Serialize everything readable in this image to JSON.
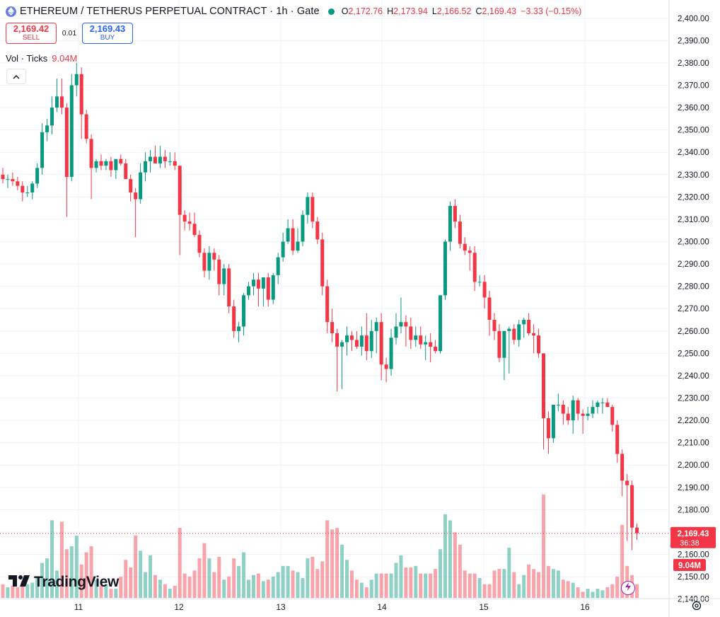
{
  "header": {
    "title": "ETHEREUM / TETHERUS PERPETUAL CONTRACT · 1h · Gate",
    "ohlc": {
      "o_label": "O",
      "o": "2,172.76",
      "h_label": "H",
      "h": "2,173.94",
      "l_label": "L",
      "l": "2,166.52",
      "c_label": "C",
      "c": "2,169.43",
      "change": "−3.33 (−0.15%)"
    }
  },
  "trade": {
    "sell_price": "2,169.42",
    "sell_label": "SELL",
    "spread": "0.01",
    "buy_price": "2,169.43",
    "buy_label": "BUY"
  },
  "volume_legend": {
    "label": "Vol · Ticks",
    "value": "9.04M"
  },
  "price_tag": {
    "price": "2,169.43",
    "countdown": "36:38"
  },
  "volume_tag": "9.04M",
  "branding": {
    "logo_text": "TradingView"
  },
  "icons": {
    "symbol": "ethereum-icon",
    "collapse": "chevron-up-icon",
    "bolt": "lightning-icon",
    "settings": "gear-icon"
  },
  "colors": {
    "up": "#089981",
    "down": "#f23645",
    "grid": "#f0f3fa",
    "axis_text": "#131722"
  },
  "chart_data": {
    "type": "candlestick",
    "interval": "1h",
    "y_axis": {
      "ticks": [
        "2,140.00",
        "2,150.00",
        "2,160.00",
        "2,170.00",
        "2,180.00",
        "2,190.00",
        "2,200.00",
        "2,210.00",
        "2,220.00",
        "2,230.00",
        "2,240.00",
        "2,250.00",
        "2,260.00",
        "2,270.00",
        "2,280.00",
        "2,290.00",
        "2,300.00",
        "2,310.00",
        "2,320.00",
        "2,330.00",
        "2,340.00",
        "2,350.00",
        "2,360.00",
        "2,370.00",
        "2,380.00",
        "2,390.00",
        "2,400.00"
      ],
      "range": [
        2138,
        2405
      ]
    },
    "x_axis": {
      "labels": [
        "11",
        "12",
        "13",
        "14",
        "15",
        "16"
      ]
    },
    "grid": true,
    "last_price": 2169.43,
    "candles": {
      "o": [
        2330,
        2328,
        2328,
        2327,
        2325,
        2322,
        2322,
        2326,
        2333,
        2349,
        2352,
        2360,
        2365,
        2360,
        2329,
        2370,
        2375,
        2357,
        2346,
        2333,
        2336,
        2334,
        2336,
        2332,
        2337,
        2335,
        2328,
        2322,
        2319,
        2331,
        2336,
        2338,
        2335,
        2338,
        2336,
        2336,
        2334,
        2312,
        2309,
        2308,
        2303,
        2295,
        2287,
        2295,
        2292,
        2281,
        2288,
        2271,
        2260,
        2262,
        2276,
        2280,
        2283,
        2279,
        2284,
        2274,
        2285,
        2293,
        2300,
        2306,
        2296,
        2300,
        2312,
        2320,
        2309,
        2301,
        2280,
        2264,
        2259,
        2253,
        2255,
        2258,
        2256,
        2253,
        2258,
        2251,
        2260,
        2264,
        2245,
        2243,
        2257,
        2262,
        2264,
        2262,
        2256,
        2258,
        2254,
        2255,
        2253,
        2251,
        2276,
        2300,
        2316,
        2309,
        2299,
        2296,
        2295,
        2282,
        2282,
        2275,
        2265,
        2260,
        2248,
        2260,
        2261,
        2256,
        2263,
        2265,
        2259,
        2258,
        2250,
        2221,
        2212,
        2227,
        2227,
        2223,
        2220,
        2229,
        2223,
        2222,
        2223,
        2226,
        2228,
        2228,
        2226,
        2218,
        2205,
        2193,
        2191,
        2172
      ],
      "h": [
        2333,
        2330,
        2331,
        2329,
        2327,
        2325,
        2327,
        2335,
        2353,
        2355,
        2365,
        2373,
        2373,
        2362,
        2375,
        2380,
        2378,
        2359,
        2348,
        2337,
        2339,
        2337,
        2338,
        2335,
        2339,
        2337,
        2330,
        2324,
        2335,
        2340,
        2341,
        2343,
        2343,
        2341,
        2340,
        2340,
        2334,
        2314,
        2313,
        2313,
        2305,
        2297,
        2298,
        2297,
        2294,
        2290,
        2290,
        2274,
        2264,
        2277,
        2282,
        2286,
        2286,
        2283,
        2286,
        2286,
        2295,
        2304,
        2310,
        2310,
        2306,
        2314,
        2322,
        2322,
        2311,
        2304,
        2283,
        2270,
        2261,
        2256,
        2262,
        2260,
        2260,
        2262,
        2268,
        2265,
        2266,
        2268,
        2248,
        2261,
        2268,
        2275,
        2267,
        2266,
        2262,
        2262,
        2258,
        2259,
        2256,
        2276,
        2301,
        2318,
        2319,
        2312,
        2302,
        2298,
        2298,
        2285,
        2285,
        2278,
        2268,
        2263,
        2260,
        2262,
        2263,
        2265,
        2266,
        2268,
        2263,
        2261,
        2250,
        2224,
        2226,
        2232,
        2229,
        2226,
        2231,
        2230,
        2225,
        2226,
        2229,
        2229,
        2230,
        2230,
        2227,
        2220,
        2207,
        2196,
        2193,
        2173.94
      ],
      "l": [
        2326,
        2324,
        2325,
        2323,
        2318,
        2320,
        2319,
        2324,
        2330,
        2345,
        2348,
        2358,
        2357,
        2311,
        2327,
        2365,
        2346,
        2344,
        2319,
        2331,
        2332,
        2332,
        2329,
        2328,
        2334,
        2333,
        2318,
        2302,
        2317,
        2327,
        2331,
        2335,
        2333,
        2333,
        2334,
        2332,
        2294,
        2305,
        2305,
        2302,
        2293,
        2284,
        2283,
        2287,
        2276,
        2276,
        2268,
        2257,
        2255,
        2258,
        2274,
        2276,
        2271,
        2271,
        2271,
        2272,
        2281,
        2291,
        2299,
        2294,
        2295,
        2298,
        2308,
        2306,
        2299,
        2276,
        2259,
        2255,
        2233,
        2234,
        2249,
        2251,
        2252,
        2249,
        2247,
        2248,
        2250,
        2238,
        2237,
        2240,
        2254,
        2259,
        2253,
        2252,
        2253,
        2252,
        2247,
        2246,
        2250,
        2250,
        2274,
        2296,
        2306,
        2297,
        2294,
        2287,
        2278,
        2280,
        2270,
        2258,
        2256,
        2246,
        2238,
        2241,
        2254,
        2253,
        2257,
        2258,
        2250,
        2248,
        2207,
        2205,
        2210,
        2224,
        2218,
        2218,
        2214,
        2220,
        2214,
        2220,
        2221,
        2223,
        2223,
        2226,
        2215,
        2201,
        2186,
        2166,
        2162,
        2166.52
      ],
      "c": [
        2328,
        2328,
        2327,
        2325,
        2322,
        2322,
        2326,
        2333,
        2349,
        2352,
        2360,
        2365,
        2360,
        2329,
        2370,
        2375,
        2357,
        2346,
        2333,
        2336,
        2334,
        2336,
        2332,
        2337,
        2335,
        2328,
        2322,
        2319,
        2331,
        2336,
        2338,
        2335,
        2338,
        2336,
        2336,
        2334,
        2312,
        2309,
        2308,
        2303,
        2295,
        2287,
        2295,
        2292,
        2281,
        2288,
        2271,
        2260,
        2262,
        2276,
        2280,
        2283,
        2279,
        2284,
        2274,
        2285,
        2293,
        2300,
        2306,
        2296,
        2300,
        2312,
        2320,
        2309,
        2301,
        2280,
        2264,
        2259,
        2253,
        2255,
        2258,
        2256,
        2253,
        2258,
        2251,
        2260,
        2264,
        2245,
        2243,
        2257,
        2262,
        2264,
        2262,
        2256,
        2258,
        2254,
        2255,
        2253,
        2251,
        2276,
        2300,
        2316,
        2309,
        2299,
        2296,
        2295,
        2282,
        2282,
        2275,
        2265,
        2260,
        2248,
        2260,
        2261,
        2256,
        2263,
        2265,
        2259,
        2258,
        2250,
        2221,
        2212,
        2227,
        2227,
        2223,
        2220,
        2229,
        2223,
        2222,
        2223,
        2226,
        2228,
        2228,
        2226,
        2218,
        2205,
        2193,
        2191,
        2172,
        2169.43
      ]
    },
    "volume": [
      0.9,
      0.7,
      0.8,
      0.7,
      1.1,
      0.9,
      1.0,
      1.4,
      2.3,
      2.6,
      5.1,
      1.8,
      5.0,
      3.2,
      3.4,
      4.1,
      2.2,
      3.0,
      3.4,
      1.2,
      0.8,
      0.9,
      0.6,
      0.6,
      1.4,
      2.5,
      2.0,
      4.1,
      3.1,
      1.7,
      2.8,
      1.5,
      1.2,
      0.9,
      0.6,
      0.8,
      4.6,
      1.6,
      1.4,
      1.8,
      2.6,
      3.6,
      2.6,
      1.7,
      2.7,
      1.2,
      1.4,
      2.6,
      2.1,
      3.0,
      1.2,
      1.5,
      1.6,
      1.1,
      1.2,
      1.4,
      1.7,
      2.1,
      2.1,
      1.8,
      1.7,
      1.3,
      2.6,
      2.7,
      1.9,
      2.4,
      5.1,
      4.5,
      4.6,
      3.5,
      2.5,
      1.8,
      1.2,
      1.0,
      0.7,
      1.2,
      1.6,
      1.6,
      1.6,
      1.6,
      2.3,
      2.8,
      2.0,
      2.0,
      2.1,
      1.6,
      1.6,
      1.6,
      1.9,
      3.2,
      5.5,
      5.1,
      4.3,
      3.5,
      1.8,
      1.6,
      1.6,
      1.3,
      0.9,
      0.9,
      1.8,
      1.9,
      1.9,
      3.3,
      1.7,
      0.9,
      1.5,
      2.2,
      1.9,
      1.7,
      6.8,
      2.1,
      1.9,
      1.8,
      1.2,
      1.1,
      1.0,
      0.7,
      0.4,
      0.6,
      0.4,
      0.6,
      0.5,
      0.7,
      0.9,
      1.4,
      4.8,
      2.1,
      1.5,
      0.9
    ],
    "volume_range_millions": [
      0,
      26
    ]
  }
}
